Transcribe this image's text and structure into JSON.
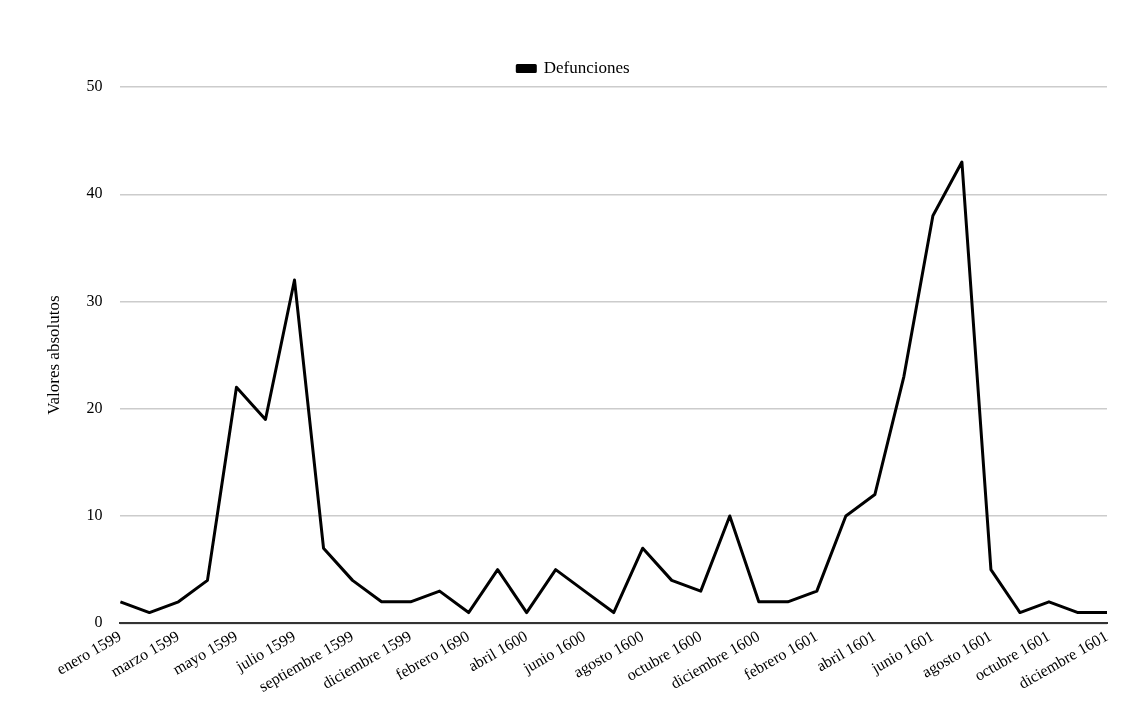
{
  "chart_data": {
    "type": "line",
    "ylabel": "Valores absolutos",
    "categories": [
      "enero 1599",
      null,
      "marzo 1599",
      null,
      "mayo 1599",
      null,
      "julio 1599",
      null,
      "septiembre 1599",
      null,
      "diciembre 1599",
      null,
      "febrero 1690",
      null,
      "abril 1600",
      null,
      "junio 1600",
      null,
      "agosto 1600",
      null,
      "octubre 1600",
      null,
      "diciembre 1600",
      null,
      "febrero 1601",
      null,
      "abril 1601",
      null,
      "junio 1601",
      null,
      "agosto 1601",
      null,
      "octubre 1601",
      null,
      "diciembre 1601"
    ],
    "series": [
      {
        "name": "Defunciones",
        "color": "#000000",
        "values": [
          2,
          1,
          2,
          4,
          22,
          19,
          32,
          7,
          4,
          2,
          2,
          3,
          1,
          5,
          1,
          5,
          3,
          1,
          7,
          4,
          3,
          10,
          2,
          2,
          3,
          10,
          12,
          23,
          38,
          43,
          5,
          1,
          2,
          1,
          1
        ]
      }
    ],
    "ylim": [
      0,
      50
    ],
    "yticks": [
      0,
      10,
      20,
      30,
      40,
      50
    ],
    "grid": "y",
    "legend": "top",
    "marker": "none",
    "line_style": "solid"
  }
}
